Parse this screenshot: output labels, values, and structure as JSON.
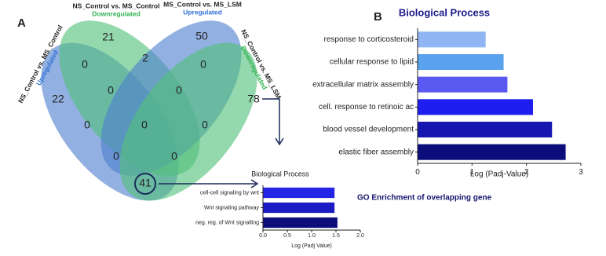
{
  "panel_labels": [
    "A",
    "B"
  ],
  "caption": "GO Enrichment of overlapping gene",
  "chart_data": [
    {
      "type": "venn",
      "sets": [
        {
          "name": "NS_Control vs. MS_Control",
          "direction": "Upregulated",
          "color": "#4f7fcf"
        },
        {
          "name": "NS_Control vs. MS_Control",
          "direction": "Downregulated",
          "color": "#52c07a"
        },
        {
          "name": "MS_Control vs. MS_LSM",
          "direction": "Upregulated",
          "color": "#4f7fcf"
        },
        {
          "name": "NS_Control vs. MS_LSM",
          "direction": "Downregulated",
          "color": "#52c07a"
        }
      ],
      "values": [
        22,
        21,
        50,
        78,
        0,
        2,
        0,
        0,
        0,
        0,
        0,
        0,
        0,
        0,
        41
      ]
    },
    {
      "type": "bar",
      "orientation": "horizontal",
      "title": "Biological Process",
      "categories": [
        "response to corticosteroid",
        "cellular response to lipid",
        "extracellular matrix assembly",
        "cell. response to retinoic ac",
        "blood vessel development",
        "elastic fiber assembly"
      ],
      "values": [
        1.25,
        1.58,
        1.65,
        2.12,
        2.47,
        2.72
      ],
      "colors": [
        "#8fb6f2",
        "#5aa2ee",
        "#5a5af2",
        "#1e1ef0",
        "#1616b0",
        "#0c0c7a"
      ],
      "xlabel": "Log (Padj-Value)",
      "xlim": [
        0,
        3
      ],
      "xticks": [
        0,
        1,
        2,
        3
      ]
    },
    {
      "type": "bar",
      "orientation": "horizontal",
      "title": "Biological Process",
      "categories": [
        "cell-cell signaling by wnt",
        "Wnt signaling pathway",
        "neg. reg. of Wnt signalling"
      ],
      "values": [
        1.47,
        1.47,
        1.53
      ],
      "colors": [
        "#2424e6",
        "#1c1cc4",
        "#0c0c7a"
      ],
      "xlabel": "Log (Padj Value)",
      "xlim": [
        0,
        2
      ],
      "xticks": [
        {
          "value": 0,
          "label": "0.0"
        },
        {
          "value": 0.5,
          "label": "0.5"
        },
        {
          "value": 1,
          "label": "1.0"
        },
        {
          "value": 1.5,
          "label": "1.5"
        },
        {
          "value": 2,
          "label": "2.0"
        }
      ]
    }
  ]
}
